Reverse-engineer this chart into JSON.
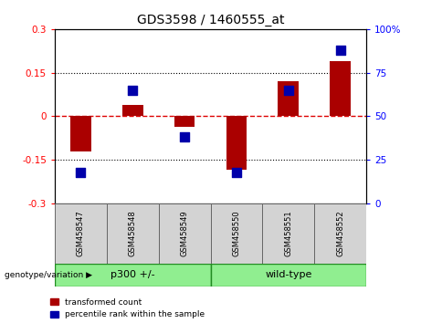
{
  "title": "GDS3598 / 1460555_at",
  "samples": [
    "GSM458547",
    "GSM458548",
    "GSM458549",
    "GSM458550",
    "GSM458551",
    "GSM458552"
  ],
  "red_values": [
    -0.12,
    0.04,
    -0.035,
    -0.185,
    0.12,
    0.19
  ],
  "blue_values_pct": [
    18,
    65,
    38,
    18,
    65,
    88
  ],
  "group1_label": "p300 +/-",
  "group2_label": "wild-type",
  "group_color": "#90EE90",
  "group_border_color": "#228B22",
  "ylim_left": [
    -0.3,
    0.3
  ],
  "ylim_right": [
    0,
    100
  ],
  "yticks_left": [
    -0.3,
    -0.15,
    0,
    0.15,
    0.3
  ],
  "yticks_right": [
    0,
    25,
    50,
    75,
    100
  ],
  "red_color": "#AA0000",
  "blue_color": "#0000AA",
  "hline_color": "#DD0000",
  "dotted_color": "#000000",
  "bar_width": 0.4,
  "dot_size": 45,
  "legend_red": "transformed count",
  "legend_blue": "percentile rank within the sample",
  "group_label": "genotype/variation",
  "title_fontsize": 10,
  "tick_fontsize": 7.5,
  "sample_fontsize": 6,
  "group_fontsize": 8
}
